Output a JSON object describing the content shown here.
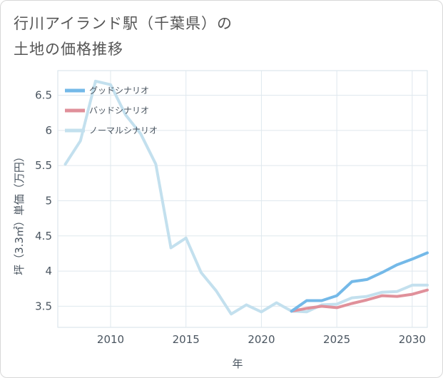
{
  "title": "行川アイランド駅（千葉県）の\n土地の価格推移",
  "chart_data": {
    "type": "line",
    "xlabel": "年",
    "ylabel": "坪（3.3㎡）単価（万円）",
    "xlim": [
      2006.5,
      2031
    ],
    "ylim": [
      3.2,
      6.85
    ],
    "x_ticks": [
      2010,
      2015,
      2020,
      2025,
      2030
    ],
    "y_ticks": [
      3.5,
      4,
      4.5,
      5,
      5.5,
      6,
      6.5
    ],
    "x_tick_labels": [
      "2010",
      "2015",
      "2020",
      "2025",
      "2030"
    ],
    "y_tick_labels": [
      "3.5",
      "4",
      "4.5",
      "5",
      "5.5",
      "6",
      "6.5"
    ],
    "grid": true,
    "legend_position": "top-left",
    "series": [
      {
        "name": "グッドシナリオ",
        "color": "#74b9e8",
        "x": [
          2022,
          2023,
          2024,
          2025,
          2026,
          2027,
          2028,
          2029,
          2030,
          2031
        ],
        "values": [
          3.43,
          3.58,
          3.58,
          3.65,
          3.85,
          3.88,
          3.98,
          4.09,
          4.17,
          4.26
        ]
      },
      {
        "name": "バッドシナリオ",
        "color": "#e0909a",
        "x": [
          2022,
          2023,
          2024,
          2025,
          2026,
          2027,
          2028,
          2029,
          2030,
          2031
        ],
        "values": [
          3.43,
          3.47,
          3.5,
          3.48,
          3.54,
          3.59,
          3.65,
          3.64,
          3.67,
          3.73
        ]
      },
      {
        "name": "ノーマルシナリオ",
        "color": "#c3e0ee",
        "x": [
          2007,
          2008,
          2009,
          2010,
          2011,
          2012,
          2013,
          2014,
          2015,
          2016,
          2017,
          2018,
          2019,
          2020,
          2021,
          2022,
          2023,
          2024,
          2025,
          2026,
          2027,
          2028,
          2029,
          2030,
          2031
        ],
        "values": [
          5.52,
          5.85,
          6.7,
          6.65,
          6.22,
          5.95,
          5.52,
          4.33,
          4.47,
          3.98,
          3.72,
          3.39,
          3.52,
          3.42,
          3.55,
          3.43,
          3.42,
          3.52,
          3.53,
          3.62,
          3.64,
          3.7,
          3.71,
          3.8,
          3.8
        ]
      }
    ]
  }
}
